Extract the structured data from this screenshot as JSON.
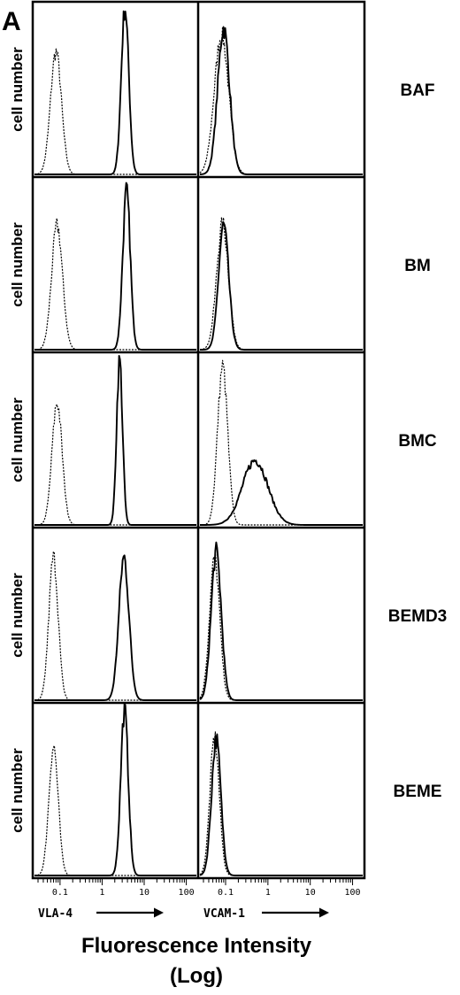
{
  "panel_letter": "A",
  "x_title_line1": "Fluorescence Intensity",
  "x_title_line2": "(Log)",
  "chart_data": {
    "type": "histogram",
    "title": "",
    "ylabel": "cell number",
    "xscale": "log",
    "xlim": [
      0.03,
      130
    ],
    "grid": false,
    "legend": "none",
    "markers": [
      {
        "column": 0,
        "label": "VLA-4"
      },
      {
        "column": 1,
        "label": "VCAM-1"
      }
    ],
    "xticks": {
      "values": [
        0.1,
        1,
        10,
        100
      ],
      "labels": [
        "0.1",
        "1",
        "10",
        "100"
      ]
    },
    "rows": [
      {
        "label": "BAF",
        "panels": [
          {
            "marker": "VLA-4",
            "series": [
              {
                "role": "control",
                "style": "dotted",
                "peak": 0.08,
                "width": 0.13,
                "height": 0.72
              },
              {
                "role": "stained",
                "style": "solid",
                "peak": 3.5,
                "width": 0.09,
                "height": 0.98
              }
            ]
          },
          {
            "marker": "VCAM-1",
            "series": [
              {
                "role": "control",
                "style": "dotted",
                "peak": 0.08,
                "width": 0.17,
                "height": 0.82
              },
              {
                "role": "stained",
                "style": "solid",
                "peak": 0.09,
                "width": 0.14,
                "height": 0.86
              }
            ]
          }
        ]
      },
      {
        "label": "BM",
        "panels": [
          {
            "marker": "VLA-4",
            "series": [
              {
                "role": "control",
                "style": "dotted",
                "peak": 0.085,
                "width": 0.13,
                "height": 0.73
              },
              {
                "role": "stained",
                "style": "solid",
                "peak": 3.8,
                "width": 0.09,
                "height": 0.93
              }
            ]
          },
          {
            "marker": "VCAM-1",
            "series": [
              {
                "role": "control",
                "style": "dotted",
                "peak": 0.085,
                "width": 0.14,
                "height": 0.74
              },
              {
                "role": "stained",
                "style": "solid",
                "peak": 0.09,
                "width": 0.12,
                "height": 0.73
              }
            ]
          }
        ]
      },
      {
        "label": "BMC",
        "panels": [
          {
            "marker": "VLA-4",
            "series": [
              {
                "role": "control",
                "style": "dotted",
                "peak": 0.085,
                "width": 0.12,
                "height": 0.72
              },
              {
                "role": "stained",
                "style": "solid",
                "peak": 2.6,
                "width": 0.07,
                "height": 0.97
              }
            ]
          },
          {
            "marker": "VCAM-1",
            "series": [
              {
                "role": "control",
                "style": "dotted",
                "peak": 0.085,
                "width": 0.12,
                "height": 0.93
              },
              {
                "role": "stained",
                "style": "solid",
                "peak": 0.5,
                "width": 0.3,
                "height": 0.38
              }
            ]
          }
        ]
      },
      {
        "label": "BEMD3",
        "panels": [
          {
            "marker": "VLA-4",
            "series": [
              {
                "role": "control",
                "style": "dotted",
                "peak": 0.07,
                "width": 0.11,
                "height": 0.84
              },
              {
                "role": "stained",
                "style": "solid",
                "peak": 3.3,
                "width": 0.12,
                "height": 0.84
              }
            ]
          },
          {
            "marker": "VCAM-1",
            "series": [
              {
                "role": "control",
                "style": "dotted",
                "peak": 0.055,
                "width": 0.12,
                "height": 0.83
              },
              {
                "role": "stained",
                "style": "solid",
                "peak": 0.06,
                "width": 0.12,
                "height": 0.87
              }
            ]
          }
        ]
      },
      {
        "label": "BEME",
        "panels": [
          {
            "marker": "VLA-4",
            "series": [
              {
                "role": "control",
                "style": "dotted",
                "peak": 0.07,
                "width": 0.11,
                "height": 0.76
              },
              {
                "role": "stained",
                "style": "solid",
                "peak": 3.4,
                "width": 0.09,
                "height": 0.97
              }
            ]
          },
          {
            "marker": "VCAM-1",
            "series": [
              {
                "role": "control",
                "style": "dotted",
                "peak": 0.055,
                "width": 0.11,
                "height": 0.81
              },
              {
                "role": "stained",
                "style": "solid",
                "peak": 0.06,
                "width": 0.11,
                "height": 0.8
              }
            ]
          }
        ]
      }
    ]
  }
}
